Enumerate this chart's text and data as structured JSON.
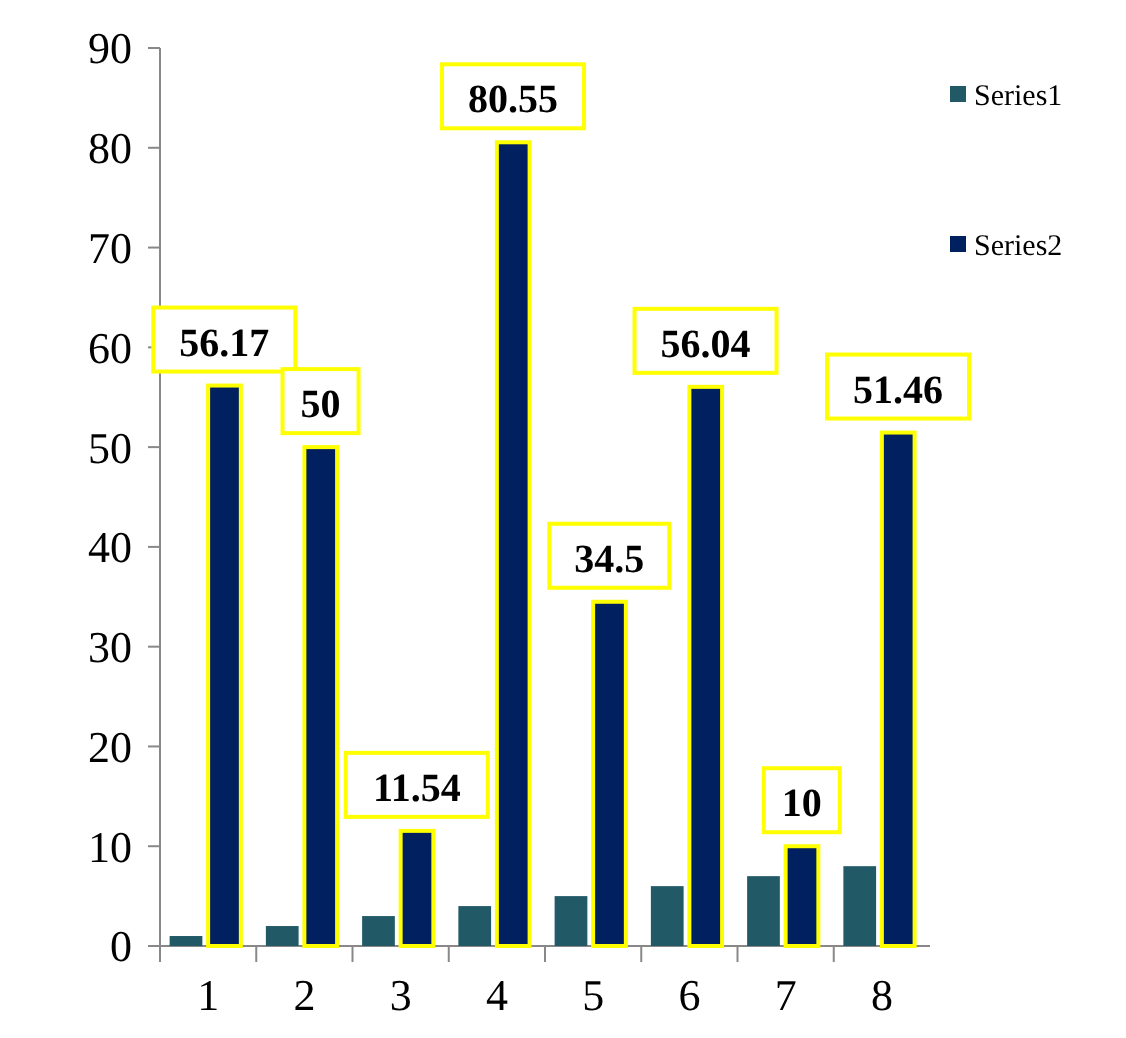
{
  "chart_data": {
    "type": "bar",
    "categories": [
      "1",
      "2",
      "3",
      "4",
      "5",
      "6",
      "7",
      "8"
    ],
    "series": [
      {
        "name": "Series1",
        "color": "#215967",
        "values": [
          1,
          2,
          3,
          4,
          5,
          6,
          7,
          8
        ]
      },
      {
        "name": "Series2",
        "color": "#002060",
        "values": [
          56.17,
          50,
          11.54,
          80.55,
          34.5,
          56.04,
          10,
          51.46
        ],
        "value_labels": [
          "56.17",
          "50",
          "11.54",
          "80.55",
          "34.5",
          "56.04",
          "10",
          "51.46"
        ]
      }
    ],
    "ylim": [
      0,
      90
    ],
    "yticks": [
      0,
      10,
      20,
      30,
      40,
      50,
      60,
      70,
      80,
      90
    ],
    "grid": false,
    "legend": "right"
  }
}
